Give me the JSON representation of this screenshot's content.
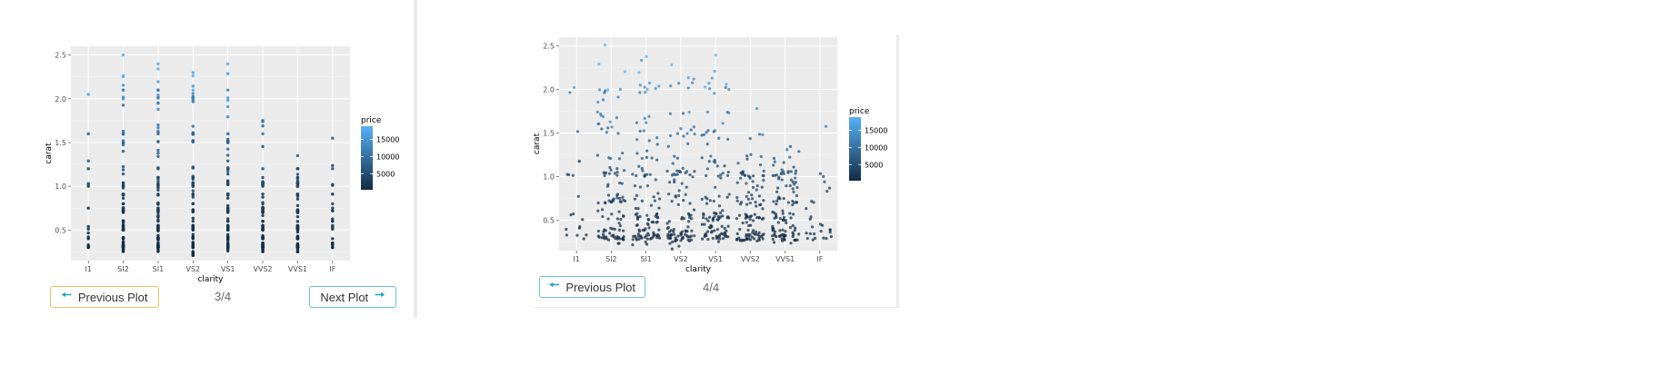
{
  "plot_left": {
    "counter": "3/4",
    "prev_label": "Previous Plot",
    "next_label": "Next Plot",
    "prev_icon": "arrow-left-icon",
    "next_icon": "arrow-right-icon"
  },
  "plot_right": {
    "counter": "4/4",
    "prev_label": "Previous Plot",
    "prev_icon": "arrow-left-icon"
  },
  "colors": {
    "panel_bg": "#ebebeb",
    "grid": "#ffffff",
    "price_low": "#132b43",
    "price_high": "#56b1f7",
    "prev_border_left": "#f0c060",
    "button_border": "#6fbfd4",
    "arrow": "#23a2c4"
  },
  "chart_data": [
    {
      "type": "scatter",
      "variant": "strip",
      "xlabel": "clarity",
      "ylabel": "carat",
      "categories": [
        "I1",
        "SI2",
        "SI1",
        "VS2",
        "VS1",
        "VVS2",
        "VVS1",
        "IF"
      ],
      "yticks": [
        0.5,
        1.0,
        1.5,
        2.0,
        2.5
      ],
      "ylim": [
        0.15,
        2.6
      ],
      "grid": true,
      "legend": {
        "title": "price",
        "position": "right",
        "breaks": [
          15000,
          10000,
          5000
        ],
        "range": [
          326,
          18800
        ]
      },
      "series_summary": [
        {
          "clarity": "I1",
          "carat_range": [
            0.3,
            2.05
          ]
        },
        {
          "clarity": "SI2",
          "carat_range": [
            0.25,
            2.5
          ]
        },
        {
          "clarity": "SI1",
          "carat_range": [
            0.25,
            2.4
          ]
        },
        {
          "clarity": "VS2",
          "carat_range": [
            0.2,
            2.3
          ]
        },
        {
          "clarity": "VS1",
          "carat_range": [
            0.25,
            2.4
          ]
        },
        {
          "clarity": "VVS2",
          "carat_range": [
            0.25,
            1.75
          ]
        },
        {
          "clarity": "VVS1",
          "carat_range": [
            0.25,
            1.35
          ]
        },
        {
          "clarity": "IF",
          "carat_range": [
            0.3,
            1.55
          ]
        }
      ]
    },
    {
      "type": "scatter",
      "variant": "jitter",
      "xlabel": "clarity",
      "ylabel": "carat",
      "categories": [
        "I1",
        "SI2",
        "SI1",
        "VS2",
        "VS1",
        "VVS2",
        "VVS1",
        "IF"
      ],
      "yticks": [
        0.5,
        1.0,
        1.5,
        2.0,
        2.5
      ],
      "ylim": [
        0.15,
        2.6
      ],
      "grid": true,
      "legend": {
        "title": "price",
        "position": "right",
        "breaks": [
          15000,
          10000,
          5000
        ],
        "range": [
          326,
          18800
        ]
      },
      "series_summary": [
        {
          "clarity": "I1",
          "carat_range": [
            0.3,
            2.05
          ]
        },
        {
          "clarity": "SI2",
          "carat_range": [
            0.25,
            2.5
          ]
        },
        {
          "clarity": "SI1",
          "carat_range": [
            0.25,
            2.4
          ]
        },
        {
          "clarity": "VS2",
          "carat_range": [
            0.2,
            2.3
          ]
        },
        {
          "clarity": "VS1",
          "carat_range": [
            0.25,
            2.4
          ]
        },
        {
          "clarity": "VVS2",
          "carat_range": [
            0.25,
            1.75
          ]
        },
        {
          "clarity": "VVS1",
          "carat_range": [
            0.25,
            1.35
          ]
        },
        {
          "clarity": "IF",
          "carat_range": [
            0.3,
            1.55
          ]
        }
      ]
    }
  ]
}
